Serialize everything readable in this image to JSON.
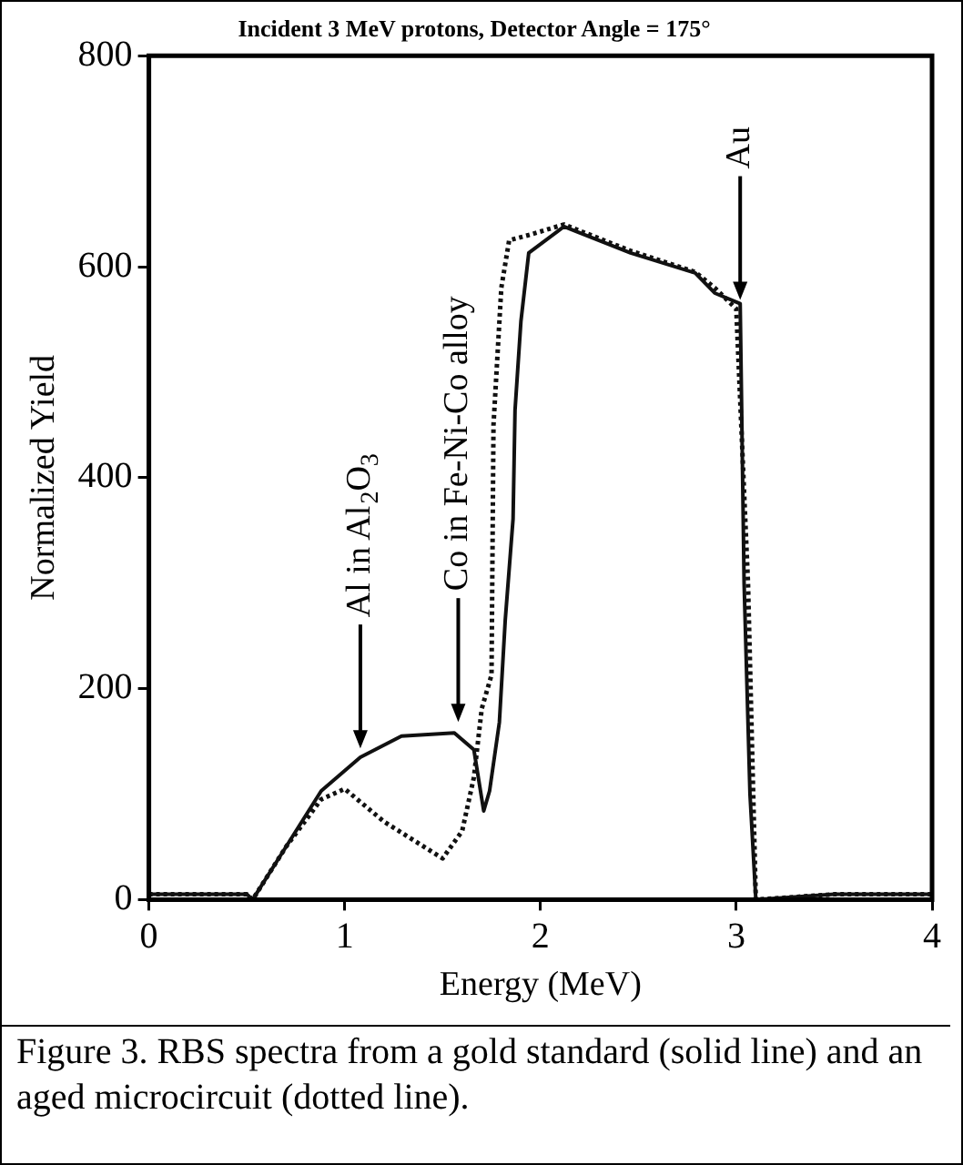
{
  "chart_data": {
    "type": "line",
    "title": "Incident 3 MeV protons, Detector Angle = 175°",
    "xlabel": "Energy (MeV)",
    "ylabel": "Normalized Yield",
    "xlim": [
      0,
      4
    ],
    "xticks": [
      0,
      1,
      2,
      3,
      4
    ],
    "ylim": [
      0,
      800
    ],
    "yticks": [
      0,
      200,
      400,
      600,
      800
    ],
    "grid": false,
    "legend": false,
    "marker": "none",
    "series": [
      {
        "color": "#111111",
        "line_style": "solid",
        "x": [
          0,
          0.3,
          0.5,
          0.53,
          0.7,
          0.88,
          1.08,
          1.29,
          1.56,
          1.66,
          1.71,
          1.74,
          1.79,
          1.82,
          1.86,
          1.87,
          1.9,
          1.94,
          2.12,
          2.46,
          2.79,
          2.89,
          3.02,
          3.04,
          3.07,
          3.1,
          3.5,
          4
        ],
        "values": [
          5,
          5,
          5,
          0,
          50,
          103,
          135,
          155,
          158,
          142,
          84,
          103,
          168,
          265,
          361,
          464,
          548,
          613,
          638,
          613,
          594,
          575,
          565,
          300,
          100,
          0,
          5,
          5
        ]
      },
      {
        "color": "#111111",
        "line_style": "dotted",
        "x": [
          0,
          0.3,
          0.5,
          0.53,
          0.7,
          0.88,
          1.0,
          1.2,
          1.5,
          1.6,
          1.66,
          1.7,
          1.75,
          1.76,
          1.78,
          1.8,
          1.84,
          1.94,
          2.12,
          2.46,
          2.79,
          2.89,
          3.0,
          3.06,
          3.1,
          3.5,
          4
        ],
        "values": [
          5,
          5,
          5,
          0,
          50,
          95,
          105,
          74,
          39,
          65,
          116,
          181,
          213,
          450,
          515,
          580,
          625,
          630,
          640,
          615,
          595,
          580,
          560,
          300,
          0,
          5,
          5
        ]
      }
    ],
    "annotations": [
      {
        "text": "Al in Al$_{2}$O$_{3}$",
        "x": 1.08,
        "y": 140
      },
      {
        "text": "Co in Fe-Ni-Co alloy",
        "x": 1.58,
        "y": 165
      },
      {
        "text": "Au",
        "x": 3.02,
        "y": 565
      },
      "Figure 3.  RBS spectra from a gold standard (solid line) and an aged microcircuit (dotted line)."
    ]
  }
}
